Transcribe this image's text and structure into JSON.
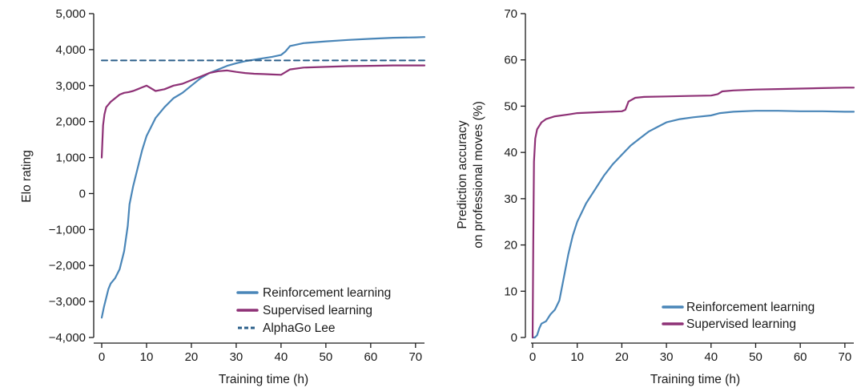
{
  "colors": {
    "reinforcement": "#4a86b8",
    "supervised": "#8e3176",
    "alphago": "#2b5f8a"
  },
  "chart_data": [
    {
      "type": "line",
      "xlabel": "Training time (h)",
      "ylabel": "Elo rating",
      "xlim": [
        0,
        72
      ],
      "ylim": [
        -4000,
        5000
      ],
      "x_ticks": [
        "0",
        "10",
        "20",
        "30",
        "40",
        "50",
        "60",
        "70"
      ],
      "y_ticks": [
        "−4,000",
        "−3,000",
        "−2,000",
        "−1,000",
        "0",
        "1,000",
        "2,000",
        "3,000",
        "4,000",
        "5,000"
      ],
      "legend_position": "bottom-right",
      "grid": false,
      "series": [
        {
          "name": "Reinforcement learning",
          "color": "#4a86b8",
          "x": [
            0,
            0.5,
            1,
            1.5,
            2,
            3,
            4,
            5,
            5.8,
            6.2,
            7,
            8,
            9,
            10,
            12,
            14,
            16,
            18,
            20,
            22,
            24,
            26,
            28,
            30,
            32,
            34,
            36,
            38,
            40,
            41,
            42,
            45,
            50,
            55,
            60,
            65,
            70,
            72
          ],
          "y": [
            -3450,
            -3150,
            -2900,
            -2650,
            -2500,
            -2350,
            -2100,
            -1600,
            -900,
            -300,
            200,
            700,
            1200,
            1600,
            2100,
            2400,
            2650,
            2800,
            3000,
            3200,
            3350,
            3450,
            3550,
            3620,
            3680,
            3720,
            3760,
            3800,
            3850,
            3950,
            4100,
            4180,
            4230,
            4270,
            4300,
            4330,
            4340,
            4350
          ]
        },
        {
          "name": "Supervised learning",
          "color": "#8e3176",
          "x": [
            0,
            0.3,
            0.6,
            1,
            2,
            3,
            4,
            5,
            6,
            7,
            8,
            9,
            10,
            12,
            14,
            16,
            18,
            20,
            22,
            24,
            26,
            28,
            30,
            32,
            34,
            36,
            38,
            40,
            42,
            45,
            50,
            55,
            60,
            65,
            70,
            72
          ],
          "y": [
            1000,
            1900,
            2200,
            2400,
            2550,
            2650,
            2750,
            2800,
            2820,
            2850,
            2900,
            2950,
            3000,
            2850,
            2900,
            3000,
            3050,
            3150,
            3250,
            3350,
            3400,
            3420,
            3380,
            3350,
            3330,
            3320,
            3310,
            3300,
            3450,
            3500,
            3520,
            3540,
            3550,
            3560,
            3560,
            3560
          ]
        },
        {
          "name": "AlphaGo Lee",
          "color": "#2b5f8a",
          "style": "dashed",
          "x": [
            0,
            72
          ],
          "y": [
            3700,
            3700
          ]
        }
      ]
    },
    {
      "type": "line",
      "xlabel": "Training time (h)",
      "ylabel_lines": [
        "Prediction accuracy",
        "on professional moves (%)"
      ],
      "xlim": [
        0,
        72
      ],
      "ylim": [
        0,
        70
      ],
      "x_ticks": [
        "0",
        "10",
        "20",
        "30",
        "40",
        "50",
        "60",
        "70"
      ],
      "y_ticks": [
        "0",
        "10",
        "20",
        "30",
        "40",
        "50",
        "60",
        "70"
      ],
      "legend_position": "bottom-right",
      "grid": false,
      "series": [
        {
          "name": "Reinforcement learning",
          "color": "#4a86b8",
          "x": [
            0,
            0.5,
            1,
            1.5,
            2,
            3,
            4,
            5,
            5.5,
            6,
            7,
            8,
            9,
            10,
            12,
            14,
            16,
            18,
            20,
            22,
            24,
            26,
            28,
            30,
            33,
            36,
            40,
            42,
            45,
            50,
            55,
            60,
            65,
            70,
            72
          ],
          "y": [
            0,
            0,
            0.5,
            2,
            3,
            3.5,
            5,
            6,
            7,
            8,
            13,
            18,
            22,
            25,
            29,
            32,
            35,
            37.5,
            39.5,
            41.5,
            43,
            44.5,
            45.5,
            46.5,
            47.2,
            47.6,
            48,
            48.5,
            48.8,
            49,
            49,
            48.9,
            48.9,
            48.8,
            48.8
          ]
        },
        {
          "name": "Supervised learning",
          "color": "#8e3176",
          "x": [
            0,
            0.15,
            0.3,
            0.6,
            1,
            2,
            3,
            5,
            8,
            10,
            15,
            20,
            20.8,
            21.5,
            23,
            25,
            30,
            35,
            40,
            41.5,
            42.5,
            45,
            50,
            55,
            60,
            65,
            70,
            72
          ],
          "y": [
            0,
            20,
            38,
            43,
            45,
            46.5,
            47.2,
            47.8,
            48.2,
            48.5,
            48.7,
            48.9,
            49.2,
            51,
            51.8,
            52,
            52.1,
            52.2,
            52.3,
            52.6,
            53.2,
            53.4,
            53.6,
            53.7,
            53.8,
            53.9,
            54,
            54
          ]
        }
      ]
    }
  ]
}
